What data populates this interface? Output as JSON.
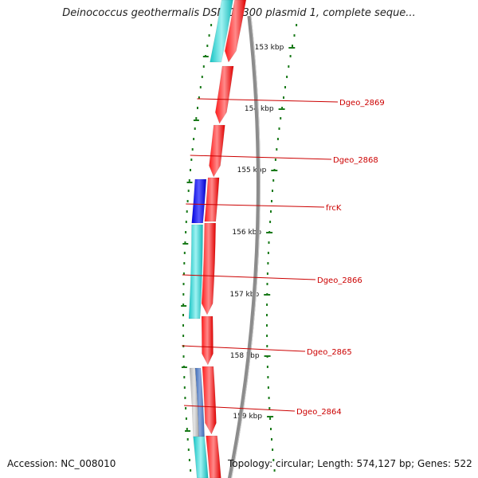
{
  "title": "Deinococcus geothermalis DSM 11300 plasmid 1, complete seque...",
  "footer": {
    "accession": "Accession: NC_008010",
    "stats": "Topology: circular; Length: 574,127 bp; Genes: 522"
  },
  "ticks": [
    "153 kbp",
    "154 kbp",
    "155 kbp",
    "156 kbp",
    "157 kbp",
    "158 kbp",
    "159 kbp"
  ],
  "gene_labels": [
    "Dgeo_2869",
    "Dgeo_2868",
    "frcK",
    "Dgeo_2866",
    "Dgeo_2865",
    "Dgeo_2864"
  ],
  "colors": {
    "cds": "#ff1a1a",
    "cds_dark": "#cc0000",
    "cyan": "#22d3d3",
    "blue": "#1a1aee",
    "steel": "#4a78c8",
    "grey_feature": "#bfbfbf",
    "backbone": "#8c8c8c",
    "tick_green": "#1a7a1a",
    "label_red": "#cc0000"
  }
}
